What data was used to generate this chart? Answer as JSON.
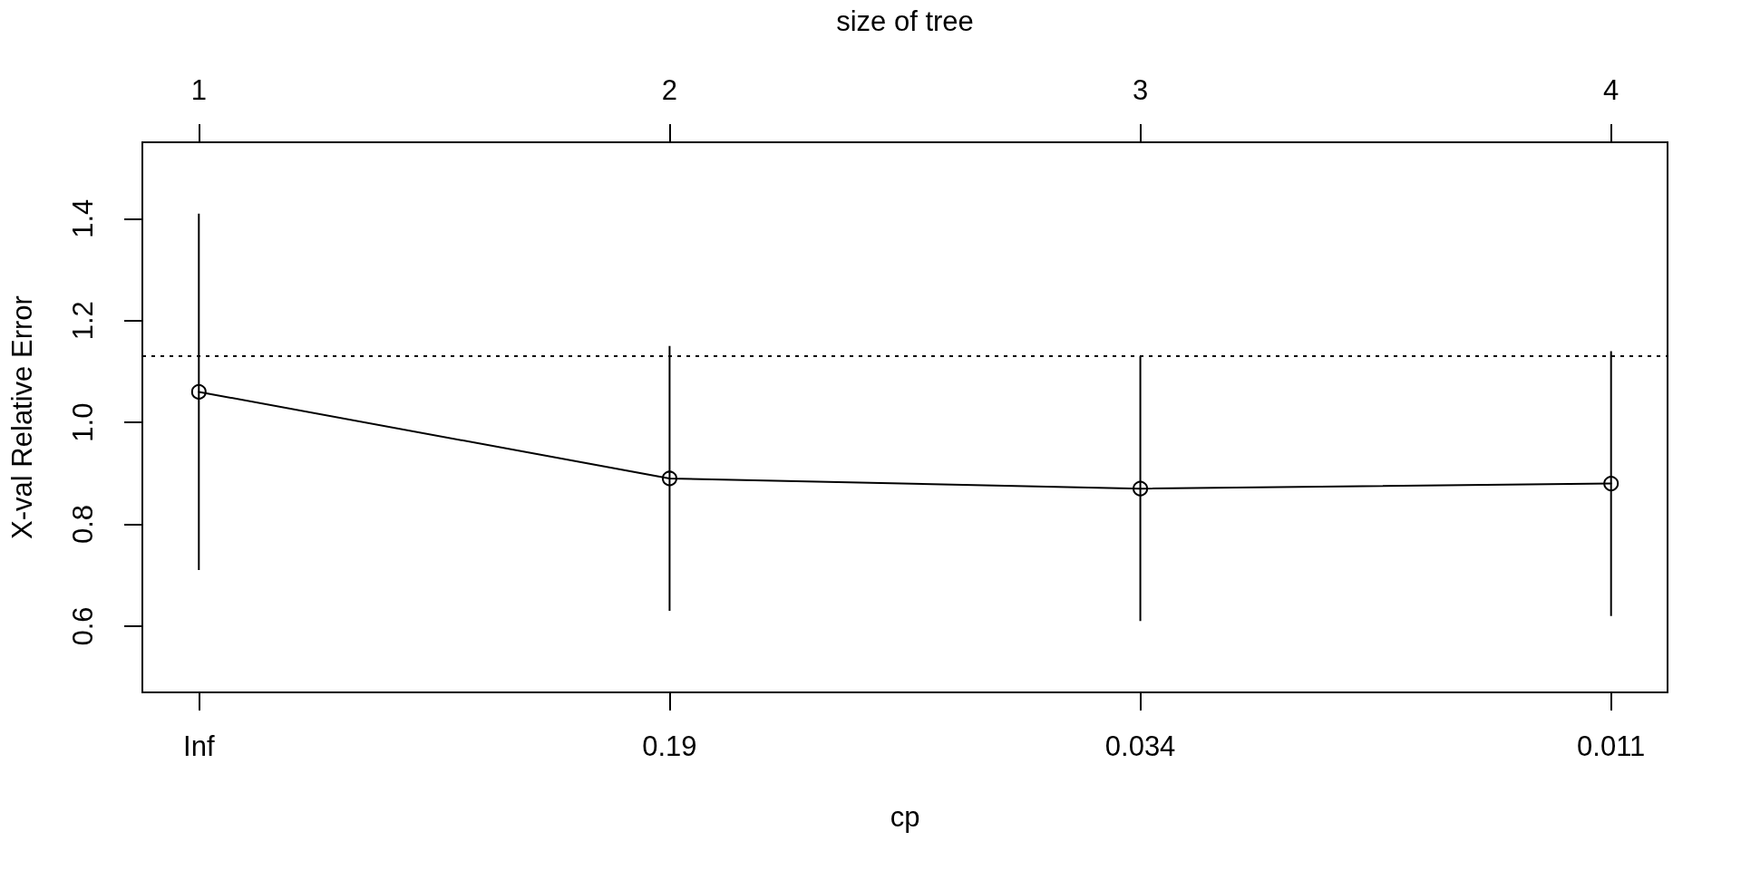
{
  "chart_data": {
    "type": "line",
    "xlabel": "cp",
    "x2label": "size of tree",
    "ylabel": "X-val Relative Error",
    "categories": [
      "Inf",
      "0.19",
      "0.034",
      "0.011"
    ],
    "series": [
      {
        "color": "#000000",
        "values": [
          1.06,
          0.89,
          0.87,
          0.88
        ],
        "errors": [
          0.35,
          0.26,
          0.26,
          0.26
        ]
      }
    ],
    "x2lim": [
      0.88,
      4.12
    ],
    "x2ticks": [
      1,
      2,
      3,
      4
    ],
    "ylim": [
      0.47,
      1.55
    ],
    "yticks": [
      0.6,
      0.8,
      {
        "value": 1,
        "label": "1.0"
      },
      1.2,
      1.4
    ],
    "ref_lines": [
      {
        "axis": "y",
        "value": 1.13,
        "line_style": "dotted",
        "color": "#000000"
      }
    ],
    "marker": "circle",
    "line_style": "solid",
    "grid": false
  }
}
